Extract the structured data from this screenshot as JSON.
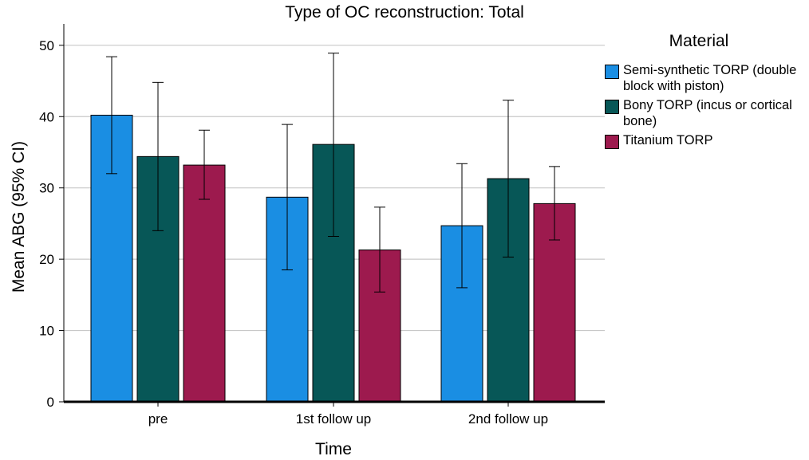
{
  "chart_data": {
    "type": "bar",
    "title": "Type of OC reconstruction: Total",
    "xlabel": "Time",
    "ylabel": "Mean ABG (95% CI)",
    "ylim": [
      0,
      53
    ],
    "yticks": [
      0,
      10,
      20,
      30,
      40,
      50
    ],
    "grid": true,
    "legend_title": "Material",
    "legend_position": "right",
    "categories": [
      "pre",
      "1st follow up",
      "2nd follow up"
    ],
    "series": [
      {
        "name": "Semi-synthetic TORP (double block with piston)",
        "color": "#1a8ee3",
        "values": [
          40.2,
          28.7,
          24.7
        ],
        "ci_low": [
          32.0,
          18.5,
          16.0
        ],
        "ci_high": [
          48.4,
          38.9,
          33.4
        ]
      },
      {
        "name": "Bony TORP (incus or cortical bone)",
        "color": "#075757",
        "values": [
          34.4,
          36.1,
          31.3
        ],
        "ci_low": [
          24.0,
          23.2,
          20.3
        ],
        "ci_high": [
          44.8,
          48.9,
          42.3
        ]
      },
      {
        "name": "Titanium TORP",
        "color": "#9d1a4e",
        "values": [
          33.2,
          21.3,
          27.8
        ],
        "ci_low": [
          28.4,
          15.4,
          22.7
        ],
        "ci_high": [
          38.1,
          27.3,
          33.0
        ]
      }
    ]
  }
}
